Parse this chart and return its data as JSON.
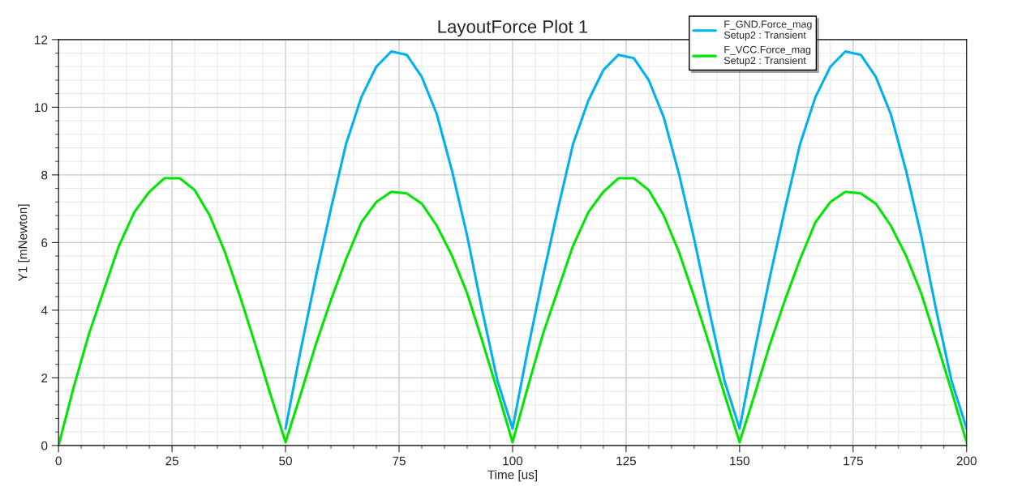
{
  "chart_data": {
    "type": "line",
    "title": "LayoutForce Plot 1",
    "xlabel": "Time [us]",
    "ylabel": "Y1 [mNewton]",
    "x": [
      0,
      3.3,
      6.7,
      10,
      13.3,
      16.7,
      20,
      23.3,
      26.7,
      30,
      33.3,
      36.7,
      40,
      43.3,
      46.7,
      50,
      53.3,
      56.7,
      60,
      63.3,
      66.7,
      70,
      73.3,
      76.7,
      80,
      83.3,
      86.7,
      90,
      93.3,
      96.7,
      100,
      103.3,
      106.7,
      110,
      113.3,
      116.7,
      120,
      123.3,
      126.7,
      130,
      133.3,
      136.7,
      140,
      143.3,
      146.7,
      150,
      153.3,
      156.7,
      160,
      163.3,
      166.7,
      170,
      173.3,
      176.7,
      180,
      183.3,
      186.7,
      190,
      193.3,
      196.7,
      200
    ],
    "series": [
      {
        "name": "F_GND.Force_mag\nSetup2 : Transient",
        "color": "#00b0f0",
        "values": [
          null,
          null,
          null,
          null,
          null,
          null,
          null,
          null,
          null,
          null,
          null,
          null,
          null,
          null,
          null,
          0.5,
          2.8,
          5.0,
          7.0,
          8.9,
          10.3,
          11.2,
          11.65,
          11.55,
          10.9,
          9.8,
          8.1,
          6.2,
          4.0,
          1.9,
          0.5,
          2.8,
          5.0,
          7.0,
          8.9,
          10.2,
          11.1,
          11.55,
          11.45,
          10.8,
          9.7,
          8.0,
          6.1,
          4.0,
          1.9,
          0.5,
          2.8,
          5.0,
          7.0,
          8.9,
          10.3,
          11.2,
          11.65,
          11.55,
          10.9,
          9.8,
          8.1,
          6.2,
          4.0,
          1.9,
          0.5
        ]
      },
      {
        "name": "F_VCC.Force_mag\nSetup2 : Transient",
        "color": "#00e600",
        "values": [
          0.0,
          1.7,
          3.3,
          4.6,
          5.9,
          6.9,
          7.5,
          7.9,
          7.9,
          7.55,
          6.8,
          5.7,
          4.4,
          3.0,
          1.5,
          0.1,
          1.5,
          3.0,
          4.3,
          5.5,
          6.6,
          7.2,
          7.5,
          7.45,
          7.15,
          6.5,
          5.6,
          4.5,
          3.1,
          1.6,
          0.1,
          1.7,
          3.3,
          4.6,
          5.9,
          6.9,
          7.5,
          7.9,
          7.9,
          7.55,
          6.8,
          5.7,
          4.4,
          3.0,
          1.5,
          0.1,
          1.5,
          3.0,
          4.3,
          5.5,
          6.6,
          7.2,
          7.5,
          7.45,
          7.15,
          6.5,
          5.6,
          4.5,
          3.1,
          1.6,
          0.1
        ]
      }
    ],
    "xlim": [
      0,
      200
    ],
    "xticks": [
      0,
      25,
      50,
      75,
      100,
      125,
      150,
      175,
      200
    ],
    "ylim": [
      0,
      12
    ],
    "yticks": [
      0,
      2,
      4,
      6,
      8,
      10,
      12
    ],
    "grid": true,
    "legend": "top right",
    "marker": "none",
    "line_style": "solid"
  }
}
